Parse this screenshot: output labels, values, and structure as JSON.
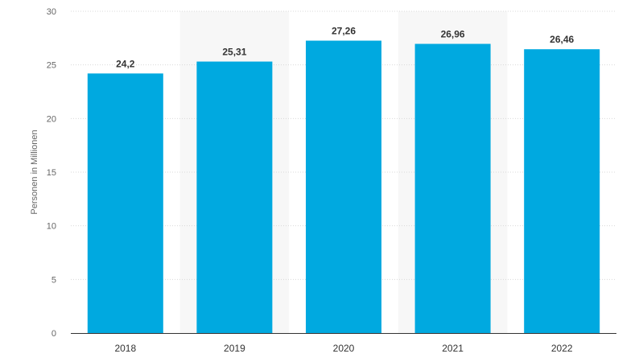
{
  "chart_data": {
    "type": "bar",
    "categories": [
      "2018",
      "2019",
      "2020",
      "2021",
      "2022"
    ],
    "values": [
      24.2,
      25.31,
      27.26,
      26.96,
      26.46
    ],
    "value_labels": [
      "24,2",
      "25,31",
      "27,26",
      "26,96",
      "26,46"
    ],
    "title": "",
    "xlabel": "",
    "ylabel": "Personen in Millionen",
    "ylim": [
      0,
      30
    ],
    "yticks": [
      0,
      5,
      10,
      15,
      20,
      25,
      30
    ],
    "ytick_labels": [
      "0",
      "5",
      "10",
      "15",
      "20",
      "25",
      "30"
    ],
    "grid": true,
    "legend": "none",
    "colors": {
      "bar": "#00a9e0",
      "grid": "#d9d9d9",
      "axis": "#333333",
      "band": "#f7f7f7"
    }
  }
}
